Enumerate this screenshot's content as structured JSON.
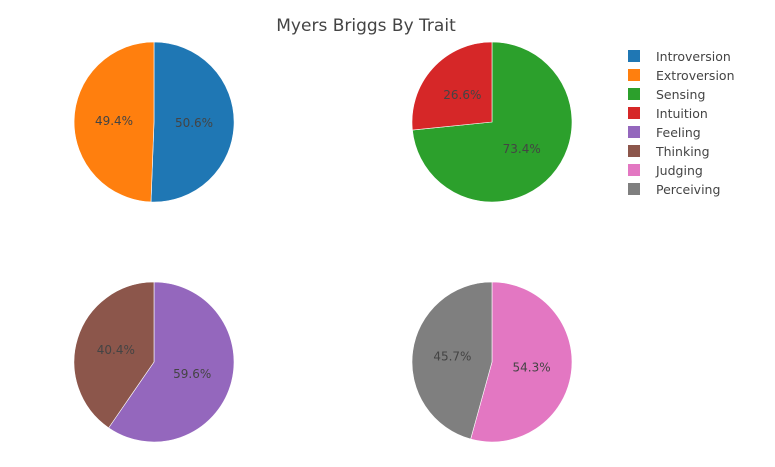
{
  "chart_data": {
    "type": "pie",
    "title": "Myers Briggs By Trait",
    "legend_position": "top-right",
    "legend": [
      {
        "name": "Introversion",
        "color": "#1f77b4"
      },
      {
        "name": "Extroversion",
        "color": "#ff7f0e"
      },
      {
        "name": "Sensing",
        "color": "#2ca02c"
      },
      {
        "name": "Intuition",
        "color": "#d62728"
      },
      {
        "name": "Feeling",
        "color": "#9467bd"
      },
      {
        "name": "Thinking",
        "color": "#8c564b"
      },
      {
        "name": "Judging",
        "color": "#e377c2"
      },
      {
        "name": "Perceiving",
        "color": "#7f7f7f"
      }
    ],
    "pies": [
      {
        "slices": [
          {
            "label": "Introversion",
            "value": 50.6,
            "text": "50.6%",
            "color": "#1f77b4"
          },
          {
            "label": "Extroversion",
            "value": 49.4,
            "text": "49.4%",
            "color": "#ff7f0e"
          }
        ]
      },
      {
        "slices": [
          {
            "label": "Sensing",
            "value": 73.4,
            "text": "73.4%",
            "color": "#2ca02c"
          },
          {
            "label": "Intuition",
            "value": 26.6,
            "text": "26.6%",
            "color": "#d62728"
          }
        ]
      },
      {
        "slices": [
          {
            "label": "Feeling",
            "value": 59.6,
            "text": "59.6%",
            "color": "#9467bd"
          },
          {
            "label": "Thinking",
            "value": 40.4,
            "text": "40.4%",
            "color": "#8c564b"
          }
        ]
      },
      {
        "slices": [
          {
            "label": "Judging",
            "value": 54.3,
            "text": "54.3%",
            "color": "#e377c2"
          },
          {
            "label": "Perceiving",
            "value": 45.7,
            "text": "45.7%",
            "color": "#7f7f7f"
          }
        ]
      }
    ]
  }
}
